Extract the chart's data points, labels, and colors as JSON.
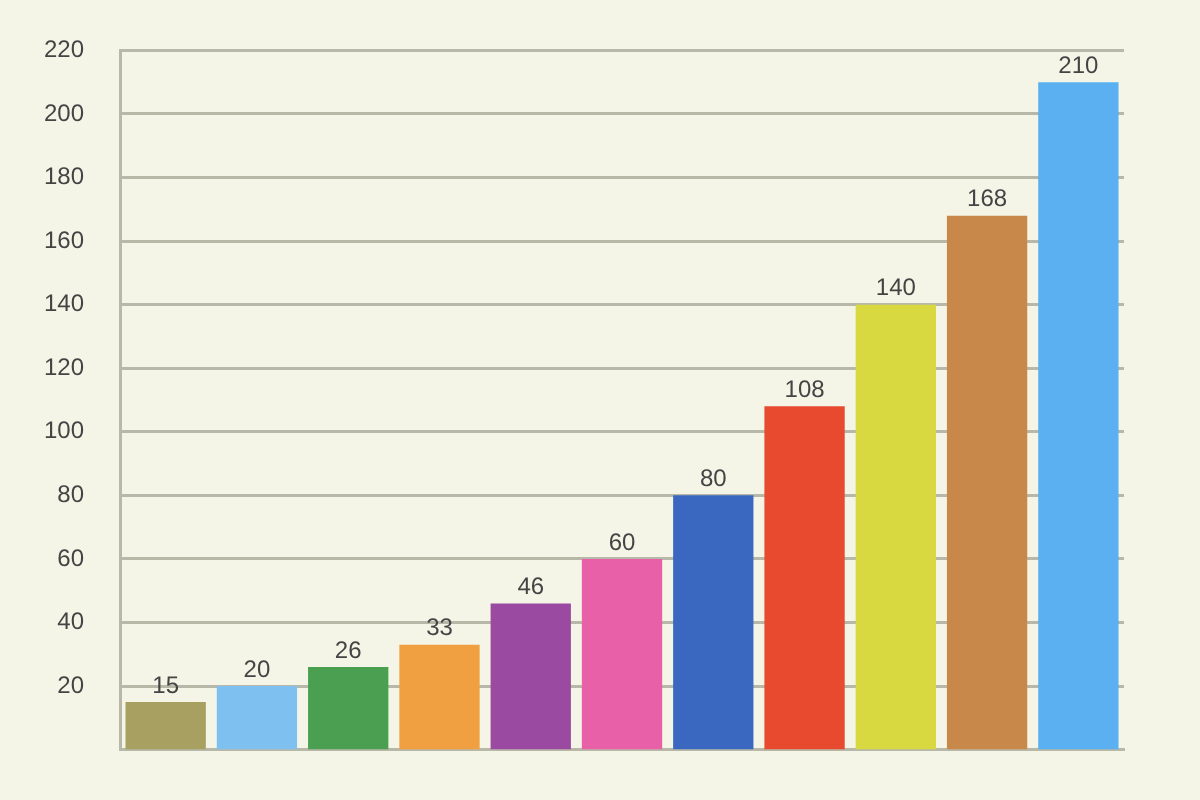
{
  "chart_data": {
    "type": "bar",
    "categories": [
      null,
      null,
      null,
      null,
      null,
      null,
      null,
      null,
      null,
      null,
      null
    ],
    "values": [
      15,
      20,
      26,
      33,
      46,
      60,
      80,
      108,
      140,
      168,
      210
    ],
    "colors": [
      "#a8a060",
      "#7ec0f0",
      "#4aa050",
      "#f0a040",
      "#9a4aa0",
      "#e860a8",
      "#3a68c0",
      "#e84a30",
      "#d8d840",
      "#c8884a",
      "#5ab0f0"
    ],
    "ylim": [
      0,
      220
    ],
    "yticks": [
      20,
      40,
      60,
      80,
      100,
      120,
      140,
      160,
      180,
      200,
      220
    ],
    "grid": "y",
    "data_labels": true,
    "tick_labels": "y"
  }
}
